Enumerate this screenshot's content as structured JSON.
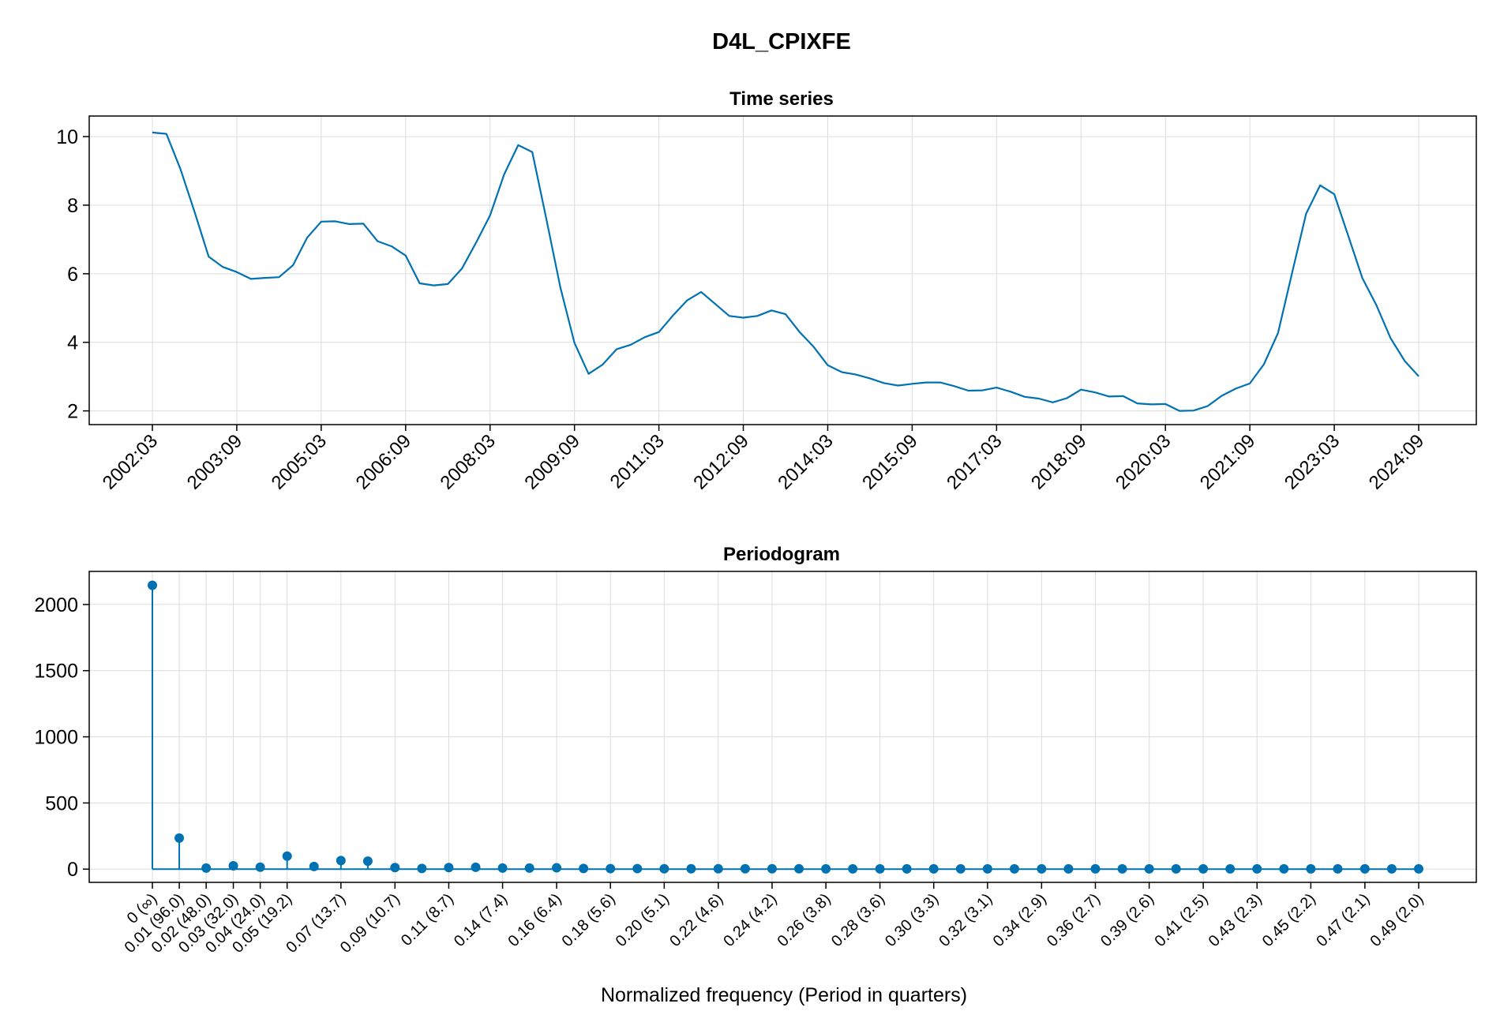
{
  "figure": {
    "title": "D4L_CPIXFE"
  },
  "colors": {
    "series": "#0072b2",
    "grid": "#dcdcdc",
    "frame": "#000000"
  },
  "chart_data": [
    {
      "type": "line",
      "title": "Time series",
      "xlabel": "",
      "ylabel": "",
      "x_period_labels": [
        "2002:03",
        "2002:06",
        "2002:09",
        "2002:12",
        "2003:03",
        "2003:06",
        "2003:09",
        "2003:12",
        "2004:03",
        "2004:06",
        "2004:09",
        "2004:12",
        "2005:03",
        "2005:06",
        "2005:09",
        "2005:12",
        "2006:03",
        "2006:06",
        "2006:09",
        "2006:12",
        "2007:03",
        "2007:06",
        "2007:09",
        "2007:12",
        "2008:03",
        "2008:06",
        "2008:09",
        "2008:12",
        "2009:03",
        "2009:06",
        "2009:09",
        "2009:12",
        "2010:03",
        "2010:06",
        "2010:09",
        "2010:12",
        "2011:03",
        "2011:06",
        "2011:09",
        "2011:12",
        "2012:03",
        "2012:06",
        "2012:09",
        "2012:12",
        "2013:03",
        "2013:06",
        "2013:09",
        "2013:12",
        "2014:03",
        "2014:06",
        "2014:09",
        "2014:12",
        "2015:03",
        "2015:06",
        "2015:09",
        "2015:12",
        "2016:03",
        "2016:06",
        "2016:09",
        "2016:12",
        "2017:03",
        "2017:06",
        "2017:09",
        "2017:12",
        "2018:03",
        "2018:06",
        "2018:09",
        "2018:12",
        "2019:03",
        "2019:06",
        "2019:09",
        "2019:12",
        "2020:03",
        "2020:06",
        "2020:09",
        "2020:12",
        "2021:03",
        "2021:06",
        "2021:09",
        "2021:12",
        "2022:03",
        "2022:06",
        "2022:09",
        "2022:12",
        "2023:03",
        "2023:06",
        "2023:09",
        "2023:12",
        "2024:03",
        "2024:06",
        "2024:09"
      ],
      "values": [
        10.12,
        10.08,
        9.05,
        7.8,
        6.5,
        6.2,
        6.05,
        5.85,
        5.88,
        5.9,
        6.25,
        7.05,
        7.52,
        7.53,
        7.45,
        7.46,
        6.95,
        6.8,
        6.53,
        5.72,
        5.66,
        5.7,
        6.15,
        6.9,
        7.7,
        8.9,
        9.75,
        9.55,
        7.6,
        5.6,
        3.98,
        3.08,
        3.35,
        3.8,
        3.93,
        4.15,
        4.3,
        4.78,
        5.22,
        5.47,
        5.12,
        4.77,
        4.72,
        4.77,
        4.93,
        4.82,
        4.3,
        3.87,
        3.33,
        3.13,
        3.06,
        2.95,
        2.81,
        2.74,
        2.79,
        2.83,
        2.83,
        2.72,
        2.59,
        2.6,
        2.68,
        2.56,
        2.41,
        2.36,
        2.25,
        2.37,
        2.62,
        2.54,
        2.42,
        2.43,
        2.22,
        2.19,
        2.2,
        2.0,
        2.01,
        2.14,
        2.44,
        2.65,
        2.8,
        3.36,
        4.27,
        6.02,
        7.75,
        8.58,
        8.32,
        7.1,
        5.87,
        5.08,
        4.12,
        3.46,
        3.01
      ],
      "x_tick_labels": [
        "2002:03",
        "2003:09",
        "2005:03",
        "2006:09",
        "2008:03",
        "2009:09",
        "2011:03",
        "2012:09",
        "2014:03",
        "2015:09",
        "2017:03",
        "2018:09",
        "2020:03",
        "2021:09",
        "2023:03",
        "2024:09"
      ],
      "y_ticks": [
        2,
        4,
        6,
        8,
        10
      ],
      "ylim": [
        1.6,
        10.6
      ],
      "grid": true
    },
    {
      "type": "stem",
      "title": "Periodogram",
      "xlabel": "Normalized frequency (Period in quarters)",
      "ylabel": "",
      "x": [
        0,
        0.0104,
        0.0208,
        0.0313,
        0.0417,
        0.0521,
        0.0625,
        0.0729,
        0.0833,
        0.0938,
        0.1042,
        0.1146,
        0.125,
        0.1354,
        0.1458,
        0.1563,
        0.1667,
        0.1771,
        0.1875,
        0.1979,
        0.2083,
        0.2188,
        0.2292,
        0.2396,
        0.25,
        0.2604,
        0.2708,
        0.2813,
        0.2917,
        0.3021,
        0.3125,
        0.3229,
        0.3333,
        0.3438,
        0.3542,
        0.3646,
        0.375,
        0.3854,
        0.3958,
        0.4063,
        0.4167,
        0.4271,
        0.4375,
        0.4479,
        0.4583,
        0.4688,
        0.4792,
        0.4896
      ],
      "values": [
        2145,
        235,
        8,
        25,
        15,
        98,
        20,
        65,
        60,
        12,
        5,
        12,
        14,
        8,
        8,
        10,
        5,
        4,
        4,
        3,
        3,
        3,
        3,
        3,
        3,
        2,
        2,
        2,
        2,
        2,
        2,
        2,
        2,
        2,
        2,
        2,
        2,
        2,
        2,
        2,
        2,
        2,
        2,
        2,
        2,
        2,
        2,
        2
      ],
      "x_tick_labels": [
        "0 (∞)",
        "0.01 (96.0)",
        "0.02 (48.0)",
        "0.03 (32.0)",
        "0.04 (24.0)",
        "0.05 (19.2)",
        "0.07 (13.7)",
        "0.09 (10.7)",
        "0.11 (8.7)",
        "0.14 (7.4)",
        "0.16 (6.4)",
        "0.18 (5.6)",
        "0.20 (5.1)",
        "0.22 (4.6)",
        "0.24 (4.2)",
        "0.26 (3.8)",
        "0.28 (3.6)",
        "0.30 (3.3)",
        "0.32 (3.1)",
        "0.34 (2.9)",
        "0.36 (2.7)",
        "0.39 (2.6)",
        "0.41 (2.5)",
        "0.43 (2.3)",
        "0.45 (2.2)",
        "0.47 (2.1)",
        "0.49 (2.0)"
      ],
      "x_tick_values": [
        0,
        0.0104,
        0.0208,
        0.0313,
        0.0417,
        0.0521,
        0.0729,
        0.0938,
        0.1146,
        0.1354,
        0.1563,
        0.1771,
        0.1979,
        0.2188,
        0.2396,
        0.2604,
        0.2813,
        0.3021,
        0.3229,
        0.3438,
        0.3646,
        0.3854,
        0.4063,
        0.4271,
        0.4479,
        0.4688,
        0.4896
      ],
      "y_ticks": [
        0,
        500,
        1000,
        1500,
        2000
      ],
      "ylim": [
        -100,
        2250
      ],
      "grid": true
    }
  ]
}
